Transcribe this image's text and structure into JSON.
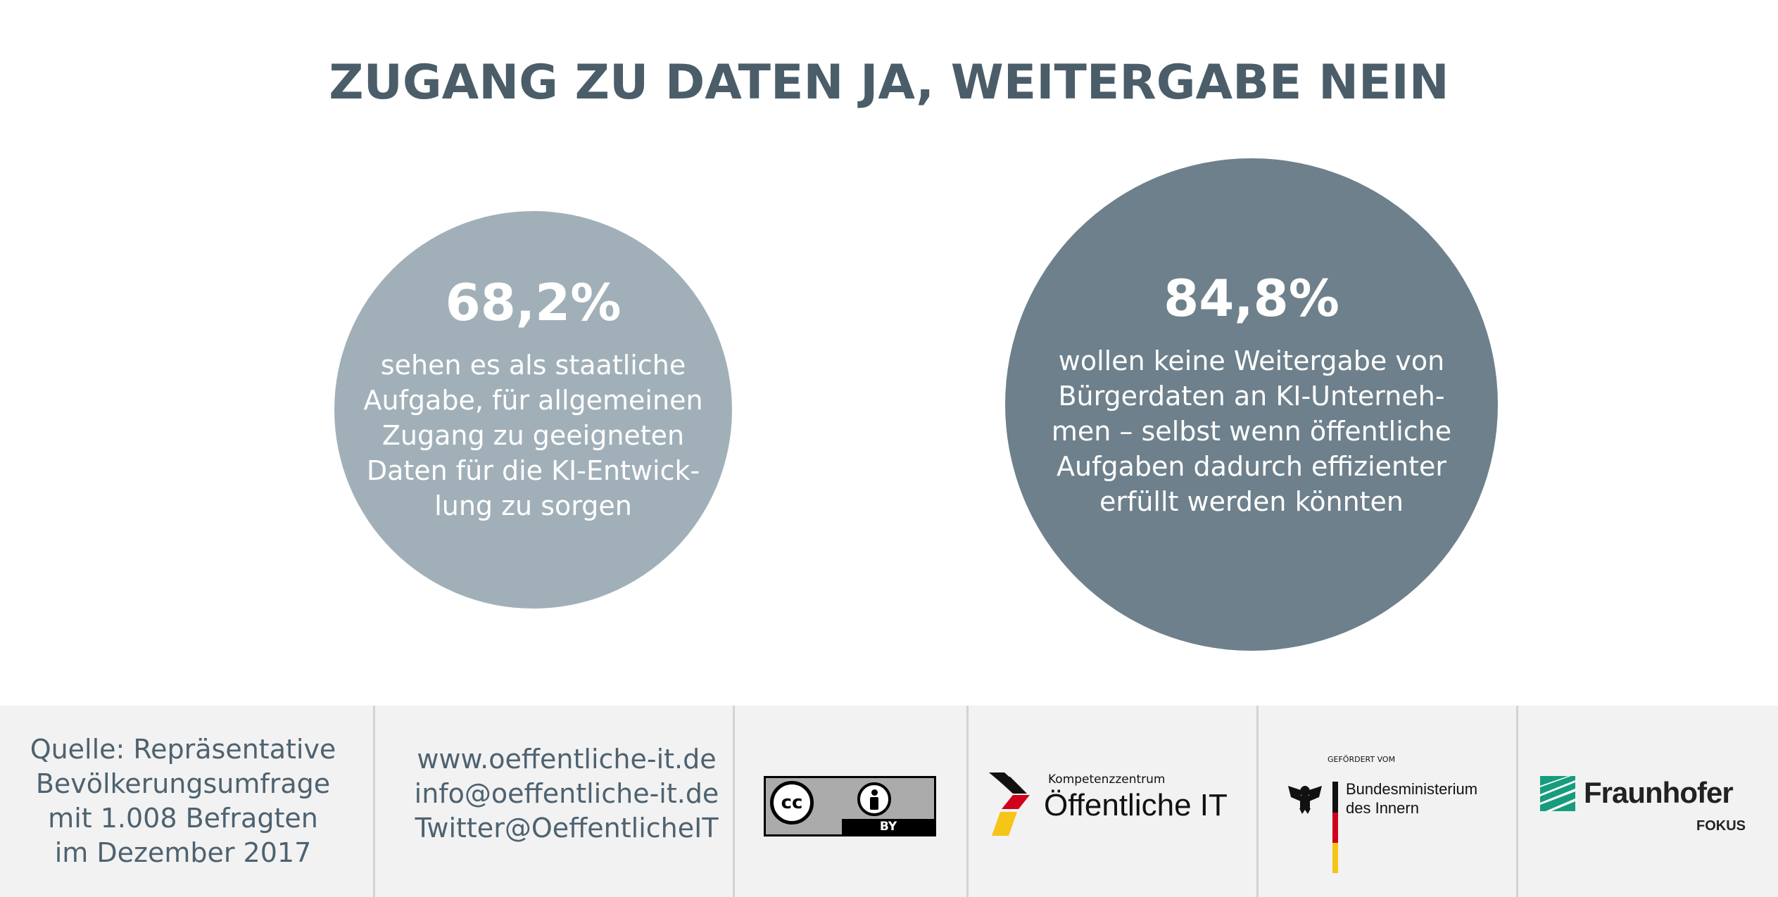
{
  "title": "ZUGANG ZU DATEN JA, WEITERGABE NEIN",
  "stats": [
    {
      "percent": "68,2%",
      "lines": [
        "sehen es als staatliche",
        "Aufgabe, für allgemeinen",
        "Zugang zu geeigneten",
        "Daten für die KI-Entwick-",
        "lung zu sorgen"
      ]
    },
    {
      "percent": "84,8%",
      "lines": [
        "wollen keine Weitergabe von",
        "Bürgerdaten an KI-Unterneh-",
        "men – selbst wenn öffentliche",
        "Aufgaben dadurch effizienter",
        "erfüllt werden könnten"
      ]
    }
  ],
  "footer": {
    "source_lines": [
      "Quelle: Repräsentative",
      "Bevölkerungsumfrage",
      "mit 1.008 Befragten",
      "im Dezember 2017"
    ],
    "contact_lines": [
      "www.oeffentliche-it.de",
      "info@oeffentliche-it.de",
      "Twitter@OeffentlicheIT"
    ],
    "license": {
      "cc": "cc",
      "by": "BY"
    },
    "oeit_logo": {
      "small": "Kompetenzzentrum",
      "big": "Öffentliche IT"
    },
    "bmi_logo": {
      "small": "GEFÖRDERT VOM",
      "line1": "Bundesministerium",
      "line2": "des Innern"
    },
    "fraunhofer_logo": {
      "name": "Fraunhofer",
      "sub": "FOKUS"
    }
  },
  "colors": {
    "title": "#4a5d69",
    "circle_light": "#a1b0b8",
    "circle_dark": "#6d808b",
    "footer_bg": "#f2f2f2",
    "footer_text": "#4e6270",
    "fraunhofer_green": "#179c7d"
  }
}
